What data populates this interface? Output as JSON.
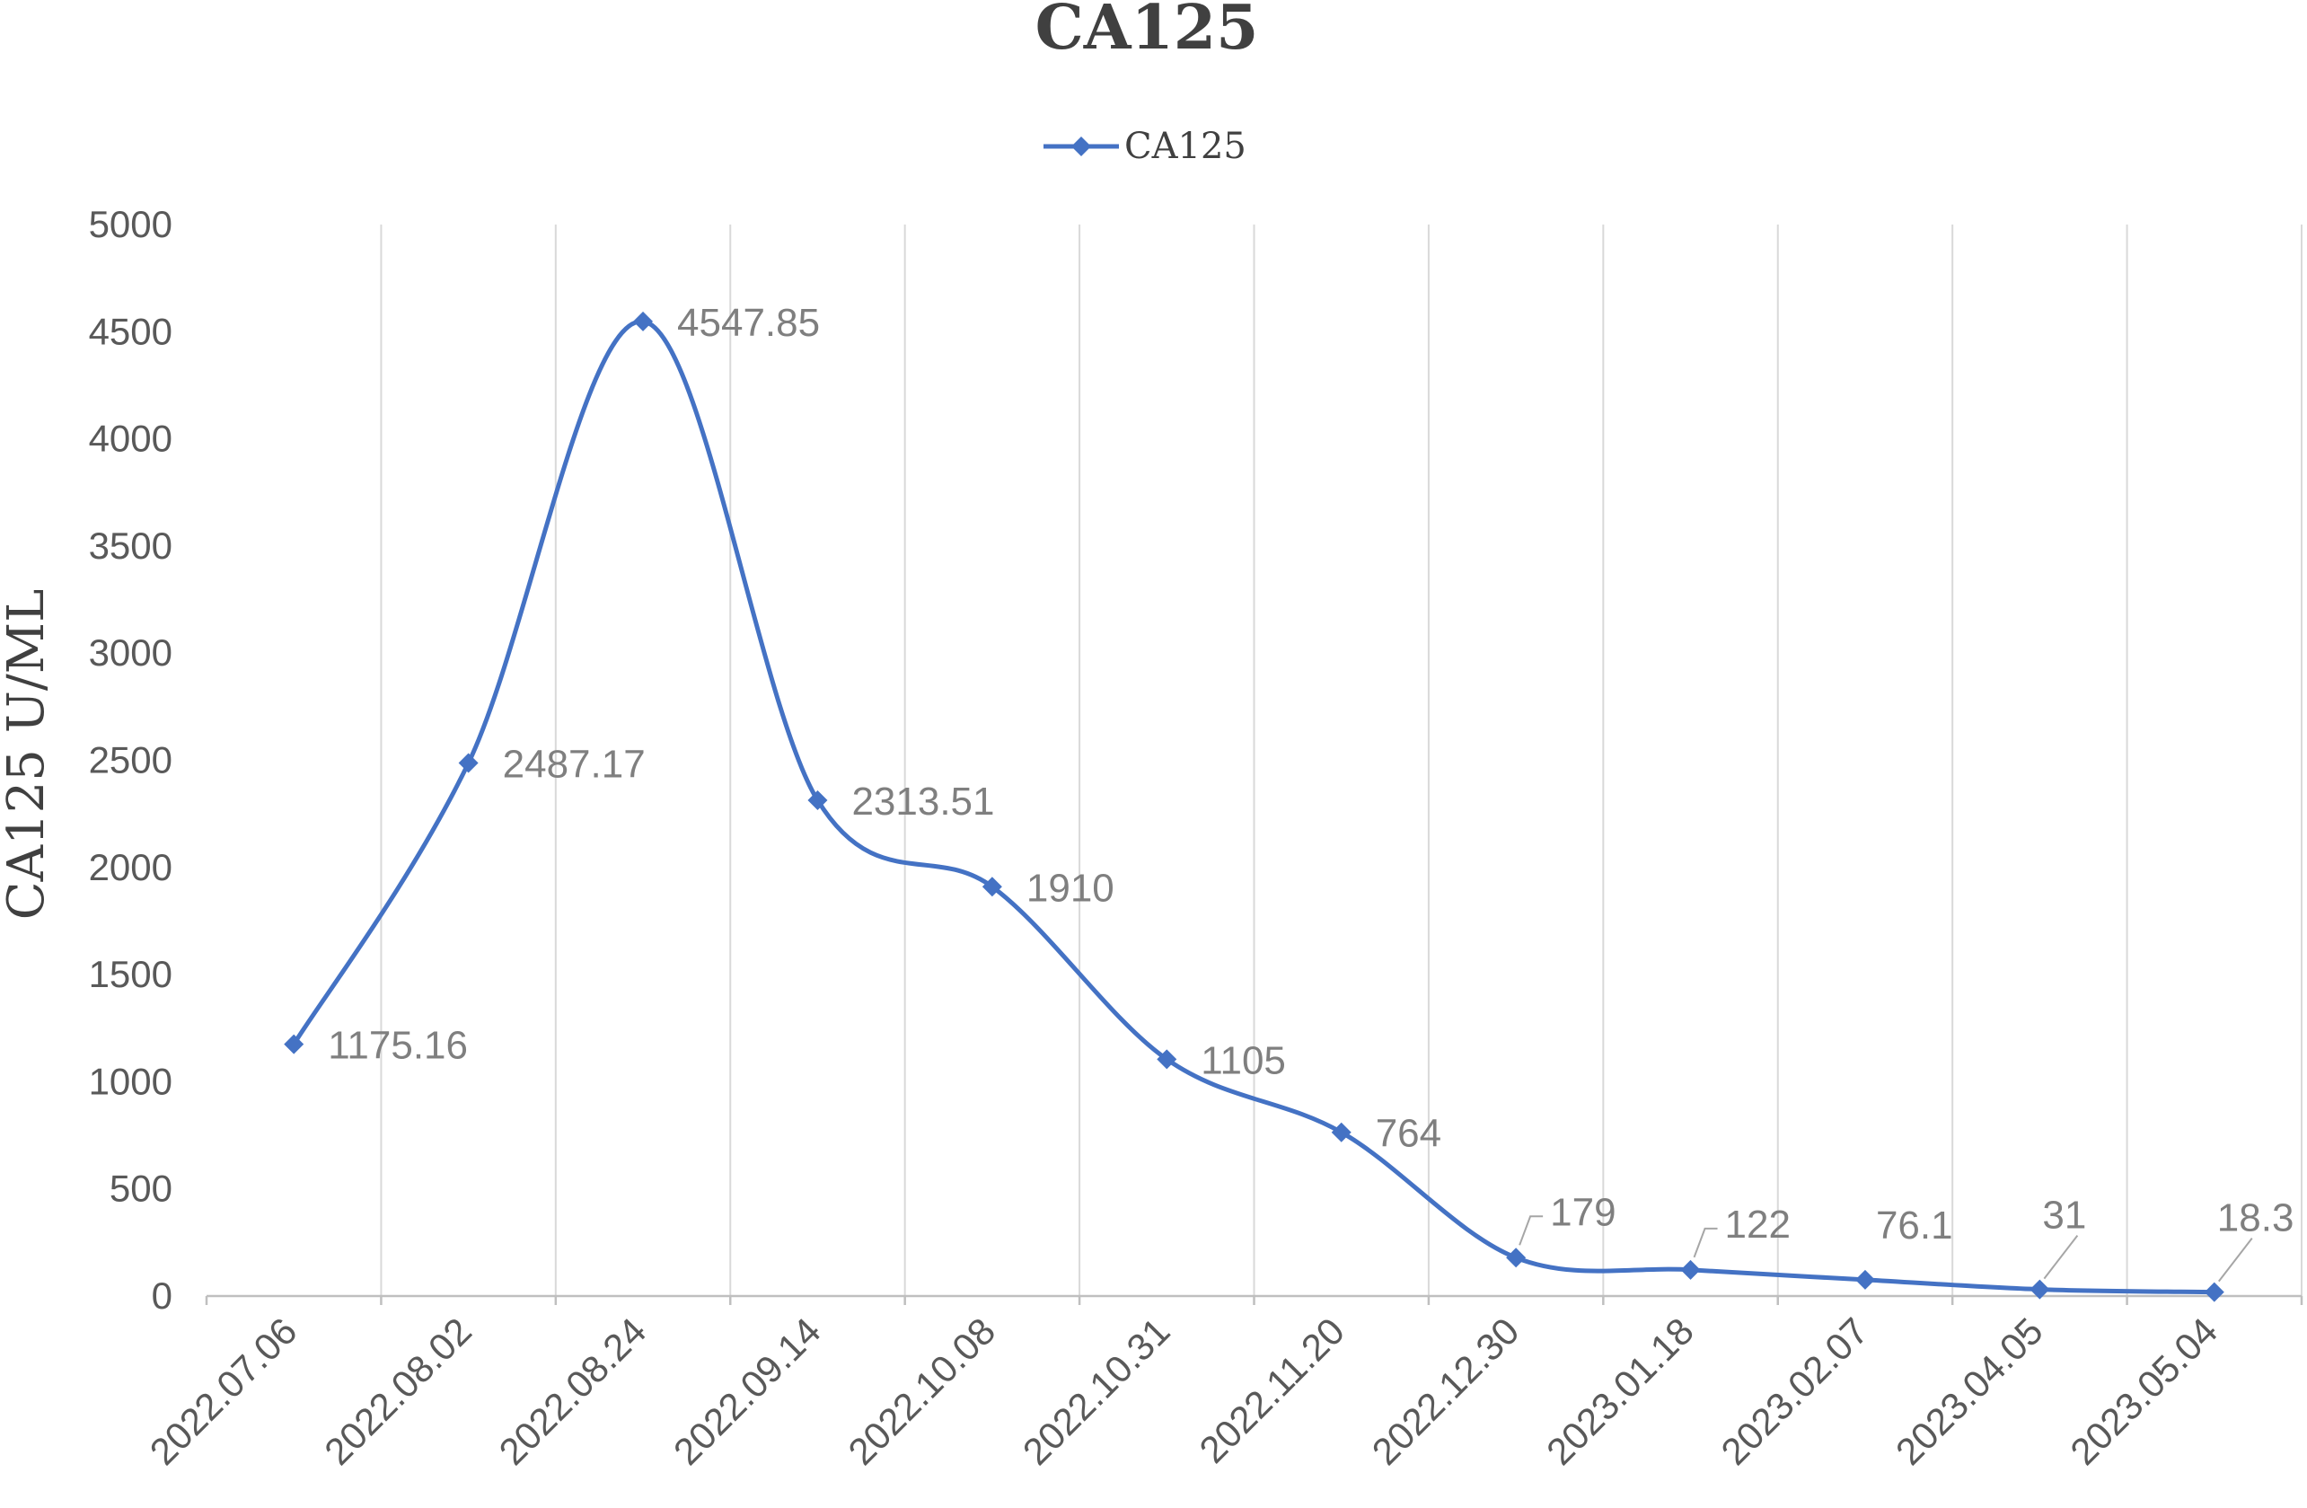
{
  "chart_data": {
    "type": "line",
    "title": "CA125",
    "ylabel": "CA125 U/ML",
    "xlabel": "",
    "ylim": [
      0,
      5000
    ],
    "yticks": [
      0,
      500,
      1000,
      1500,
      2000,
      2500,
      3000,
      3500,
      4000,
      4500,
      5000
    ],
    "grid": "vertical",
    "smooth": true,
    "legend_position": "top-center",
    "categories": [
      "2022.07.06",
      "2022.08.02",
      "2022.08.24",
      "2022.09.14",
      "2022.10.08",
      "2022.10.31",
      "2022.11.20",
      "2022.12.30",
      "2023.01.18",
      "2023.02.07",
      "2023.04.05",
      "2023.05.04"
    ],
    "series": [
      {
        "name": "CA125",
        "color": "#4472C4",
        "marker": "diamond",
        "values": [
          1175.16,
          2487.17,
          4547.85,
          2313.51,
          1910,
          1105,
          764,
          179,
          122,
          76.1,
          31,
          18.3
        ],
        "data_labels": [
          "1175.16",
          "2487.17",
          "4547.85",
          "2313.51",
          "1910",
          "1105",
          "764",
          "179",
          "122",
          "76.1",
          "31",
          "18.3"
        ]
      }
    ]
  }
}
